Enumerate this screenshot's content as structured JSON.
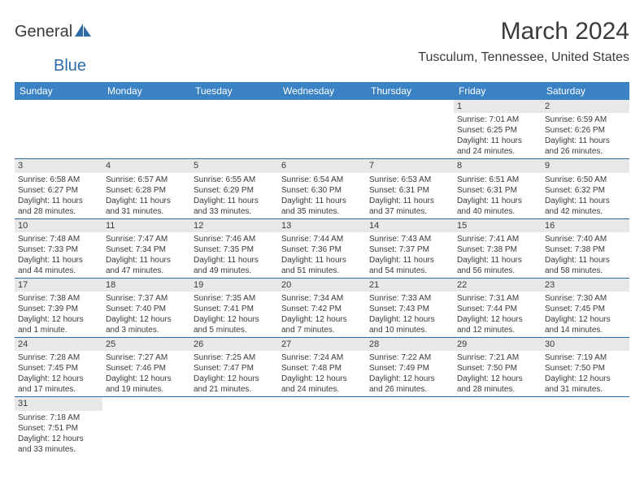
{
  "brand": {
    "word1": "General",
    "word2": "Blue"
  },
  "title": {
    "month_year": "March 2024",
    "location": "Tusculum, Tennessee, United States"
  },
  "colors": {
    "header_bg": "#3b82c4",
    "header_fg": "#ffffff",
    "daynum_bg": "#e8e8e8",
    "row_border": "#2e6ca8",
    "text": "#3a3a3a",
    "logo_blue": "#2e6ca8"
  },
  "weekdays": [
    "Sunday",
    "Monday",
    "Tuesday",
    "Wednesday",
    "Thursday",
    "Friday",
    "Saturday"
  ],
  "layout": {
    "leading_blanks": 5,
    "days_in_month": 31,
    "columns": 7
  },
  "days": {
    "1": {
      "sunrise": "Sunrise: 7:01 AM",
      "sunset": "Sunset: 6:25 PM",
      "daylight1": "Daylight: 11 hours",
      "daylight2": "and 24 minutes."
    },
    "2": {
      "sunrise": "Sunrise: 6:59 AM",
      "sunset": "Sunset: 6:26 PM",
      "daylight1": "Daylight: 11 hours",
      "daylight2": "and 26 minutes."
    },
    "3": {
      "sunrise": "Sunrise: 6:58 AM",
      "sunset": "Sunset: 6:27 PM",
      "daylight1": "Daylight: 11 hours",
      "daylight2": "and 28 minutes."
    },
    "4": {
      "sunrise": "Sunrise: 6:57 AM",
      "sunset": "Sunset: 6:28 PM",
      "daylight1": "Daylight: 11 hours",
      "daylight2": "and 31 minutes."
    },
    "5": {
      "sunrise": "Sunrise: 6:55 AM",
      "sunset": "Sunset: 6:29 PM",
      "daylight1": "Daylight: 11 hours",
      "daylight2": "and 33 minutes."
    },
    "6": {
      "sunrise": "Sunrise: 6:54 AM",
      "sunset": "Sunset: 6:30 PM",
      "daylight1": "Daylight: 11 hours",
      "daylight2": "and 35 minutes."
    },
    "7": {
      "sunrise": "Sunrise: 6:53 AM",
      "sunset": "Sunset: 6:31 PM",
      "daylight1": "Daylight: 11 hours",
      "daylight2": "and 37 minutes."
    },
    "8": {
      "sunrise": "Sunrise: 6:51 AM",
      "sunset": "Sunset: 6:31 PM",
      "daylight1": "Daylight: 11 hours",
      "daylight2": "and 40 minutes."
    },
    "9": {
      "sunrise": "Sunrise: 6:50 AM",
      "sunset": "Sunset: 6:32 PM",
      "daylight1": "Daylight: 11 hours",
      "daylight2": "and 42 minutes."
    },
    "10": {
      "sunrise": "Sunrise: 7:48 AM",
      "sunset": "Sunset: 7:33 PM",
      "daylight1": "Daylight: 11 hours",
      "daylight2": "and 44 minutes."
    },
    "11": {
      "sunrise": "Sunrise: 7:47 AM",
      "sunset": "Sunset: 7:34 PM",
      "daylight1": "Daylight: 11 hours",
      "daylight2": "and 47 minutes."
    },
    "12": {
      "sunrise": "Sunrise: 7:46 AM",
      "sunset": "Sunset: 7:35 PM",
      "daylight1": "Daylight: 11 hours",
      "daylight2": "and 49 minutes."
    },
    "13": {
      "sunrise": "Sunrise: 7:44 AM",
      "sunset": "Sunset: 7:36 PM",
      "daylight1": "Daylight: 11 hours",
      "daylight2": "and 51 minutes."
    },
    "14": {
      "sunrise": "Sunrise: 7:43 AM",
      "sunset": "Sunset: 7:37 PM",
      "daylight1": "Daylight: 11 hours",
      "daylight2": "and 54 minutes."
    },
    "15": {
      "sunrise": "Sunrise: 7:41 AM",
      "sunset": "Sunset: 7:38 PM",
      "daylight1": "Daylight: 11 hours",
      "daylight2": "and 56 minutes."
    },
    "16": {
      "sunrise": "Sunrise: 7:40 AM",
      "sunset": "Sunset: 7:38 PM",
      "daylight1": "Daylight: 11 hours",
      "daylight2": "and 58 minutes."
    },
    "17": {
      "sunrise": "Sunrise: 7:38 AM",
      "sunset": "Sunset: 7:39 PM",
      "daylight1": "Daylight: 12 hours",
      "daylight2": "and 1 minute."
    },
    "18": {
      "sunrise": "Sunrise: 7:37 AM",
      "sunset": "Sunset: 7:40 PM",
      "daylight1": "Daylight: 12 hours",
      "daylight2": "and 3 minutes."
    },
    "19": {
      "sunrise": "Sunrise: 7:35 AM",
      "sunset": "Sunset: 7:41 PM",
      "daylight1": "Daylight: 12 hours",
      "daylight2": "and 5 minutes."
    },
    "20": {
      "sunrise": "Sunrise: 7:34 AM",
      "sunset": "Sunset: 7:42 PM",
      "daylight1": "Daylight: 12 hours",
      "daylight2": "and 7 minutes."
    },
    "21": {
      "sunrise": "Sunrise: 7:33 AM",
      "sunset": "Sunset: 7:43 PM",
      "daylight1": "Daylight: 12 hours",
      "daylight2": "and 10 minutes."
    },
    "22": {
      "sunrise": "Sunrise: 7:31 AM",
      "sunset": "Sunset: 7:44 PM",
      "daylight1": "Daylight: 12 hours",
      "daylight2": "and 12 minutes."
    },
    "23": {
      "sunrise": "Sunrise: 7:30 AM",
      "sunset": "Sunset: 7:45 PM",
      "daylight1": "Daylight: 12 hours",
      "daylight2": "and 14 minutes."
    },
    "24": {
      "sunrise": "Sunrise: 7:28 AM",
      "sunset": "Sunset: 7:45 PM",
      "daylight1": "Daylight: 12 hours",
      "daylight2": "and 17 minutes."
    },
    "25": {
      "sunrise": "Sunrise: 7:27 AM",
      "sunset": "Sunset: 7:46 PM",
      "daylight1": "Daylight: 12 hours",
      "daylight2": "and 19 minutes."
    },
    "26": {
      "sunrise": "Sunrise: 7:25 AM",
      "sunset": "Sunset: 7:47 PM",
      "daylight1": "Daylight: 12 hours",
      "daylight2": "and 21 minutes."
    },
    "27": {
      "sunrise": "Sunrise: 7:24 AM",
      "sunset": "Sunset: 7:48 PM",
      "daylight1": "Daylight: 12 hours",
      "daylight2": "and 24 minutes."
    },
    "28": {
      "sunrise": "Sunrise: 7:22 AM",
      "sunset": "Sunset: 7:49 PM",
      "daylight1": "Daylight: 12 hours",
      "daylight2": "and 26 minutes."
    },
    "29": {
      "sunrise": "Sunrise: 7:21 AM",
      "sunset": "Sunset: 7:50 PM",
      "daylight1": "Daylight: 12 hours",
      "daylight2": "and 28 minutes."
    },
    "30": {
      "sunrise": "Sunrise: 7:19 AM",
      "sunset": "Sunset: 7:50 PM",
      "daylight1": "Daylight: 12 hours",
      "daylight2": "and 31 minutes."
    },
    "31": {
      "sunrise": "Sunrise: 7:18 AM",
      "sunset": "Sunset: 7:51 PM",
      "daylight1": "Daylight: 12 hours",
      "daylight2": "and 33 minutes."
    }
  }
}
